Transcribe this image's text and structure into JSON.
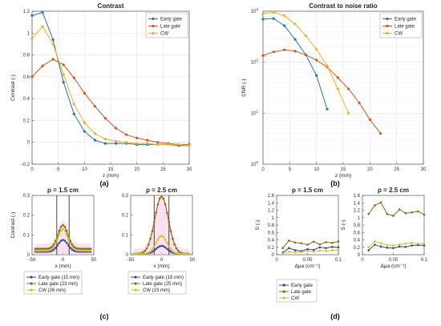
{
  "colors": {
    "early": "#1f77b4",
    "late": "#d95319",
    "cw": "#edb120",
    "early_c": "#3045a8",
    "late_c": "#8b6914",
    "cw_c": "#c8c81e",
    "gate_line": "#333333"
  },
  "chart_data": [
    {
      "id": "a",
      "panel_label": "(a)",
      "type": "line",
      "title": "Contrast",
      "xlabel": "z (mm)",
      "ylabel": "Contrast (-)",
      "xlim": [
        0,
        30
      ],
      "ylim": [
        -0.2,
        1.2
      ],
      "xticks": [
        "0",
        "5",
        "10",
        "15",
        "20",
        "25",
        "30"
      ],
      "yticks": [
        "-0.2",
        "0",
        "0.2",
        "0.4",
        "0.6",
        "0.8",
        "1",
        "1.2"
      ],
      "grid": true,
      "legend_position": "top-right",
      "x": [
        0,
        2,
        4,
        6,
        8,
        10,
        12,
        14,
        16,
        18,
        20,
        22,
        24,
        26,
        28,
        30
      ],
      "series": [
        {
          "name": "Early gate",
          "color": "early",
          "values": [
            1.16,
            1.19,
            0.94,
            0.55,
            0.26,
            0.1,
            0.02,
            -0.01,
            -0.01,
            -0.01,
            -0.02,
            -0.02,
            -0.02,
            -0.02,
            -0.03,
            -0.03
          ]
        },
        {
          "name": "Late gate",
          "color": "late",
          "values": [
            0.6,
            0.7,
            0.76,
            0.71,
            0.59,
            0.45,
            0.33,
            0.22,
            0.13,
            0.07,
            0.04,
            0.02,
            0.0,
            -0.01,
            -0.02,
            -0.02
          ]
        },
        {
          "name": "CW",
          "color": "cw",
          "values": [
            0.95,
            1.06,
            0.9,
            0.62,
            0.35,
            0.18,
            0.08,
            0.03,
            0.01,
            0.0,
            -0.01,
            -0.01,
            -0.02,
            -0.02,
            -0.02,
            -0.03
          ]
        }
      ]
    },
    {
      "id": "b",
      "panel_label": "(b)",
      "type": "line",
      "title": "Contrast to noise ratio",
      "xlabel": "z (mm)",
      "ylabel": "CNR (-)",
      "scale_y": "log",
      "xlim": [
        0,
        30
      ],
      "ylim": [
        1,
        1000
      ],
      "xticks": [
        "0",
        "5",
        "10",
        "15",
        "20",
        "25",
        "30"
      ],
      "yticks": [
        "10^0",
        "10^1",
        "10^2",
        "10^3"
      ],
      "grid": true,
      "legend_position": "top-right",
      "series": [
        {
          "name": "Early gate",
          "color": "early",
          "x": [
            0,
            2,
            4,
            6,
            8,
            10,
            12
          ],
          "values": [
            700,
            720,
            520,
            280,
            140,
            55,
            12
          ]
        },
        {
          "name": "Late gate",
          "color": "late",
          "x": [
            0,
            2,
            4,
            6,
            8,
            10,
            12,
            14,
            16,
            18,
            20,
            22
          ],
          "values": [
            135,
            160,
            175,
            165,
            140,
            110,
            80,
            50,
            30,
            16,
            7.5,
            4
          ]
        },
        {
          "name": "CW",
          "color": "cw",
          "x": [
            0,
            2,
            4,
            6,
            8,
            10,
            12,
            14,
            16
          ],
          "values": [
            900,
            950,
            820,
            560,
            330,
            180,
            85,
            30,
            10
          ]
        }
      ]
    },
    {
      "id": "c1",
      "type": "line",
      "title": "ρ = 1.5 cm",
      "xlabel": "x (mm)",
      "ylabel": "Contrast (-)",
      "xlim": [
        -50,
        50
      ],
      "ylim": [
        0,
        0.3
      ],
      "xticks": [
        "-50",
        "0",
        "50"
      ],
      "yticks": [
        "0",
        "0.1",
        "0.2",
        "0.3"
      ],
      "grid": false,
      "gate_lines_x": [
        -10,
        10
      ],
      "legend_position": "bottom",
      "series": [
        {
          "name": "Early gate (15 mm)",
          "color": "early_c",
          "peak": 0.06,
          "width": 8,
          "baseline": 0.015
        },
        {
          "name": "Late gate (23 mm)",
          "color": "late_c",
          "peak": 0.12,
          "width": 8,
          "baseline": 0.03
        },
        {
          "name": "CW (26 mm)",
          "color": "cw_c",
          "peak": 0.11,
          "width": 8,
          "baseline": 0.02
        }
      ]
    },
    {
      "id": "c2",
      "panel_label": "(c)",
      "type": "line",
      "title": "ρ = 2.5 cm",
      "xlabel": "x (mm)",
      "ylabel": "",
      "xlim": [
        -50,
        50
      ],
      "ylim": [
        0,
        0.3
      ],
      "xticks": [
        "-50",
        "0",
        "50"
      ],
      "yticks": [
        "0",
        "0.1",
        "0.2",
        "0.3"
      ],
      "grid": false,
      "gate_lines_x": [
        -12,
        12
      ],
      "legend_position": "bottom",
      "series": [
        {
          "name": "Early gate (19 mm)",
          "color": "early_c",
          "peak": 0.04,
          "width": 9,
          "baseline": 0.005
        },
        {
          "name": "Late gate (25 mm)",
          "color": "late_c",
          "peak": 0.29,
          "width": 11,
          "baseline": 0.005
        },
        {
          "name": "CW (23 mm)",
          "color": "cw_c",
          "peak": 0.09,
          "width": 9,
          "baseline": 0.005
        }
      ]
    },
    {
      "id": "d1",
      "type": "line",
      "title": "ρ = 1.5 cm",
      "xlabel": "Δμa (cm⁻¹)",
      "ylabel": "S (-)",
      "xlim": [
        0,
        0.1
      ],
      "ylim": [
        0,
        1.6
      ],
      "xticks": [
        "0",
        "0.05",
        "0.1"
      ],
      "yticks": [
        "0",
        "0.2",
        "0.4",
        "0.6",
        "0.8",
        "1",
        "1.2",
        "1.4",
        "1.6"
      ],
      "grid": false,
      "legend_position": "bottom",
      "x": [
        0.01,
        0.02,
        0.03,
        0.04,
        0.05,
        0.06,
        0.07,
        0.08,
        0.09,
        0.1
      ],
      "series": [
        {
          "name": "Early gate",
          "color": "early_c",
          "values": [
            0.06,
            0.18,
            0.12,
            0.1,
            0.15,
            0.13,
            0.2,
            0.18,
            0.21,
            0.2
          ]
        },
        {
          "name": "Late gate",
          "color": "late_c",
          "values": [
            0.18,
            0.38,
            0.33,
            0.31,
            0.27,
            0.35,
            0.28,
            0.34,
            0.32,
            0.36
          ]
        },
        {
          "name": "CW",
          "color": "cw_c",
          "values": [
            0.04,
            0.08,
            0.06,
            0.07,
            0.1,
            0.08,
            0.11,
            0.1,
            0.12,
            0.13
          ]
        }
      ]
    },
    {
      "id": "d2",
      "panel_label": "(d)",
      "type": "line",
      "title": "ρ = 2.5 cm",
      "xlabel": "Δμa (cm⁻¹)",
      "ylabel": "S (-)",
      "xlim": [
        0,
        0.1
      ],
      "ylim": [
        0,
        1.6
      ],
      "xticks": [
        "0",
        "0.05",
        "0.1"
      ],
      "yticks": [
        "0",
        "0.2",
        "0.4",
        "0.6",
        "0.8",
        "1",
        "1.2",
        "1.4",
        "1.6"
      ],
      "grid": false,
      "legend_position": "bottom",
      "x": [
        0.01,
        0.02,
        0.03,
        0.04,
        0.05,
        0.06,
        0.07,
        0.08,
        0.09,
        0.1
      ],
      "series": [
        {
          "name": "Early gate",
          "color": "early_c",
          "values": [
            0.12,
            0.27,
            0.22,
            0.19,
            0.18,
            0.22,
            0.21,
            0.25,
            0.26,
            0.25
          ]
        },
        {
          "name": "Late gate",
          "color": "late_c",
          "values": [
            1.1,
            1.33,
            1.41,
            1.1,
            1.05,
            1.22,
            1.12,
            1.14,
            1.17,
            1.08
          ]
        },
        {
          "name": "CW",
          "color": "cw_c",
          "values": [
            0.2,
            0.36,
            0.31,
            0.26,
            0.25,
            0.28,
            0.3,
            0.32,
            0.3,
            0.31
          ]
        }
      ]
    }
  ]
}
